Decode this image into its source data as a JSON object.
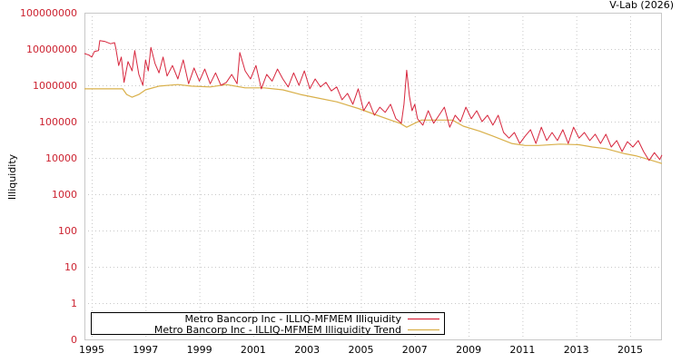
{
  "credit": "V-Lab (2026)",
  "chart_data": {
    "type": "line",
    "title": "",
    "xlabel": "",
    "ylabel": "Illiquidity",
    "yscale": "log",
    "ylim": [
      0,
      100000000
    ],
    "y_ticks": [
      "100000000",
      "10000000",
      "1000000",
      "100000",
      "10000",
      "1000",
      "100",
      "10",
      "1",
      "0"
    ],
    "x_ticks": [
      "1995",
      "1997",
      "1999",
      "2001",
      "2003",
      "2005",
      "2007",
      "2009",
      "2011",
      "2013",
      "2015"
    ],
    "xlim": [
      1994.7,
      2016.2
    ],
    "grid": true,
    "legend_position": "bottom-left inside plot",
    "series": [
      {
        "name": "Metro Bancorp Inc - ILLIQ-MFMEM Illiquidity",
        "color": "#d7263d",
        "points": [
          [
            1994.73,
            7500000
          ],
          [
            1994.9,
            6800000
          ],
          [
            1995.0,
            6000000
          ],
          [
            1995.1,
            8500000
          ],
          [
            1995.25,
            9000000
          ],
          [
            1995.3,
            17000000
          ],
          [
            1995.5,
            16000000
          ],
          [
            1995.7,
            14000000
          ],
          [
            1995.85,
            15000000
          ],
          [
            1995.9,
            10000000
          ],
          [
            1996.0,
            3500000
          ],
          [
            1996.1,
            6000000
          ],
          [
            1996.2,
            1200000
          ],
          [
            1996.35,
            4500000
          ],
          [
            1996.5,
            2500000
          ],
          [
            1996.6,
            9000000
          ],
          [
            1996.75,
            2000000
          ],
          [
            1996.9,
            1000000
          ],
          [
            1997.0,
            5000000
          ],
          [
            1997.1,
            2500000
          ],
          [
            1997.2,
            11000000
          ],
          [
            1997.35,
            4000000
          ],
          [
            1997.5,
            2200000
          ],
          [
            1997.65,
            6000000
          ],
          [
            1997.8,
            1800000
          ],
          [
            1998.0,
            3500000
          ],
          [
            1998.2,
            1500000
          ],
          [
            1998.4,
            5000000
          ],
          [
            1998.6,
            1100000
          ],
          [
            1998.8,
            3000000
          ],
          [
            1999.0,
            1300000
          ],
          [
            1999.2,
            2800000
          ],
          [
            1999.4,
            1100000
          ],
          [
            1999.6,
            2200000
          ],
          [
            1999.8,
            1000000
          ],
          [
            2000.0,
            1200000
          ],
          [
            2000.2,
            2000000
          ],
          [
            2000.4,
            1100000
          ],
          [
            2000.5,
            8000000
          ],
          [
            2000.7,
            2500000
          ],
          [
            2000.9,
            1500000
          ],
          [
            2001.1,
            3500000
          ],
          [
            2001.3,
            800000
          ],
          [
            2001.5,
            2000000
          ],
          [
            2001.7,
            1300000
          ],
          [
            2001.9,
            2800000
          ],
          [
            2002.1,
            1500000
          ],
          [
            2002.3,
            900000
          ],
          [
            2002.5,
            2200000
          ],
          [
            2002.7,
            1000000
          ],
          [
            2002.9,
            2500000
          ],
          [
            2003.1,
            800000
          ],
          [
            2003.3,
            1500000
          ],
          [
            2003.5,
            900000
          ],
          [
            2003.7,
            1200000
          ],
          [
            2003.9,
            700000
          ],
          [
            2004.1,
            900000
          ],
          [
            2004.3,
            400000
          ],
          [
            2004.5,
            600000
          ],
          [
            2004.7,
            300000
          ],
          [
            2004.9,
            800000
          ],
          [
            2005.1,
            200000
          ],
          [
            2005.3,
            350000
          ],
          [
            2005.5,
            150000
          ],
          [
            2005.7,
            250000
          ],
          [
            2005.9,
            180000
          ],
          [
            2006.1,
            300000
          ],
          [
            2006.3,
            120000
          ],
          [
            2006.5,
            90000
          ],
          [
            2006.6,
            300000
          ],
          [
            2006.7,
            2600000
          ],
          [
            2006.8,
            500000
          ],
          [
            2006.9,
            200000
          ],
          [
            2007.0,
            300000
          ],
          [
            2007.1,
            120000
          ],
          [
            2007.3,
            80000
          ],
          [
            2007.5,
            200000
          ],
          [
            2007.7,
            90000
          ],
          [
            2007.9,
            150000
          ],
          [
            2008.1,
            250000
          ],
          [
            2008.3,
            70000
          ],
          [
            2008.5,
            150000
          ],
          [
            2008.7,
            100000
          ],
          [
            2008.9,
            250000
          ],
          [
            2009.1,
            120000
          ],
          [
            2009.3,
            200000
          ],
          [
            2009.5,
            100000
          ],
          [
            2009.7,
            150000
          ],
          [
            2009.9,
            80000
          ],
          [
            2010.1,
            150000
          ],
          [
            2010.3,
            50000
          ],
          [
            2010.5,
            35000
          ],
          [
            2010.7,
            50000
          ],
          [
            2010.9,
            25000
          ],
          [
            2011.1,
            40000
          ],
          [
            2011.3,
            60000
          ],
          [
            2011.5,
            25000
          ],
          [
            2011.7,
            70000
          ],
          [
            2011.9,
            30000
          ],
          [
            2012.1,
            50000
          ],
          [
            2012.3,
            30000
          ],
          [
            2012.5,
            60000
          ],
          [
            2012.7,
            25000
          ],
          [
            2012.9,
            70000
          ],
          [
            2013.1,
            35000
          ],
          [
            2013.3,
            50000
          ],
          [
            2013.5,
            30000
          ],
          [
            2013.7,
            45000
          ],
          [
            2013.9,
            25000
          ],
          [
            2014.1,
            45000
          ],
          [
            2014.3,
            20000
          ],
          [
            2014.5,
            30000
          ],
          [
            2014.7,
            15000
          ],
          [
            2014.9,
            28000
          ],
          [
            2015.1,
            20000
          ],
          [
            2015.3,
            30000
          ],
          [
            2015.5,
            15000
          ],
          [
            2015.7,
            8500
          ],
          [
            2015.9,
            14000
          ],
          [
            2016.1,
            9000
          ],
          [
            2016.18,
            12000
          ]
        ]
      },
      {
        "name": "Metro Bancorp Inc - ILLIQ-MFMEM Illiquidity Trend",
        "color": "#d9b04a",
        "points": [
          [
            1994.73,
            800000
          ],
          [
            1996.15,
            800000
          ],
          [
            1996.3,
            560000
          ],
          [
            1996.5,
            470000
          ],
          [
            1996.75,
            560000
          ],
          [
            1997.0,
            750000
          ],
          [
            1997.5,
            950000
          ],
          [
            1998.2,
            1050000
          ],
          [
            1998.7,
            950000
          ],
          [
            1999.4,
            900000
          ],
          [
            2000.0,
            1050000
          ],
          [
            2000.7,
            850000
          ],
          [
            2001.4,
            850000
          ],
          [
            2002.1,
            750000
          ],
          [
            2002.75,
            560000
          ],
          [
            2003.25,
            470000
          ],
          [
            2004.1,
            350000
          ],
          [
            2004.9,
            230000
          ],
          [
            2005.6,
            150000
          ],
          [
            2006.1,
            110000
          ],
          [
            2006.45,
            90000
          ],
          [
            2006.7,
            70000
          ],
          [
            2007.0,
            90000
          ],
          [
            2007.25,
            110000
          ],
          [
            2007.75,
            110000
          ],
          [
            2008.4,
            110000
          ],
          [
            2008.8,
            75000
          ],
          [
            2009.4,
            55000
          ],
          [
            2009.9,
            40000
          ],
          [
            2010.6,
            25000
          ],
          [
            2011.1,
            22000
          ],
          [
            2011.6,
            22000
          ],
          [
            2012.4,
            24000
          ],
          [
            2013.1,
            23000
          ],
          [
            2013.6,
            20000
          ],
          [
            2014.1,
            18000
          ],
          [
            2014.8,
            13000
          ],
          [
            2015.2,
            11500
          ],
          [
            2015.7,
            9000
          ],
          [
            2016.18,
            7000
          ]
        ]
      }
    ]
  }
}
